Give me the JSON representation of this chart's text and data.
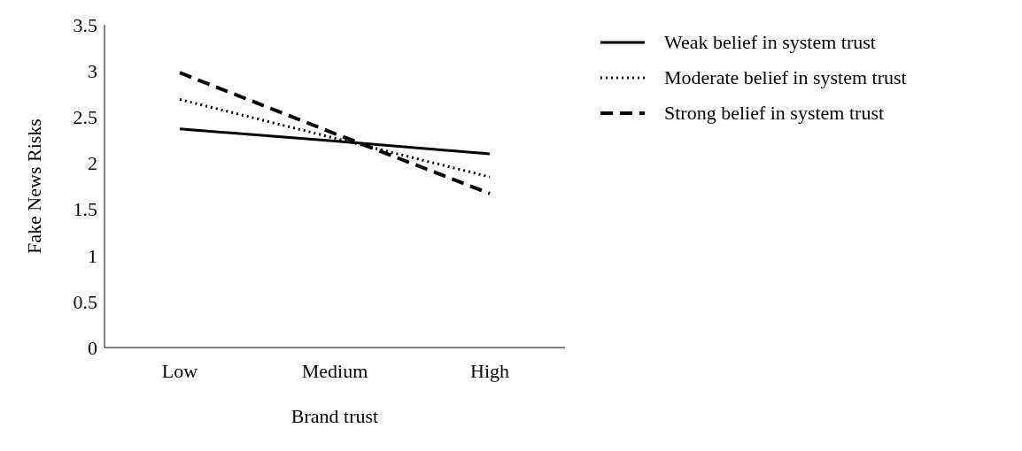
{
  "chart_data": {
    "type": "line",
    "xlabel": "Brand trust",
    "ylabel": "Fake News Risks",
    "categories": [
      "Low",
      "Medium",
      "High"
    ],
    "series": [
      {
        "name": "Weak belief in system trust",
        "color": "#000000",
        "line_style": "solid",
        "values": [
          2.37,
          2.24,
          2.1
        ]
      },
      {
        "name": "Moderate belief in system trust",
        "color": "#000000",
        "line_style": "dotted",
        "values": [
          2.69,
          2.27,
          1.85
        ]
      },
      {
        "name": "Strong belief in system trust",
        "color": "#000000",
        "line_style": "dashed",
        "values": [
          2.98,
          2.32,
          1.67
        ]
      }
    ],
    "ylim": [
      0,
      3.5
    ],
    "yticks": [
      0,
      0.5,
      1,
      1.5,
      2,
      2.5,
      3,
      3.5
    ],
    "grid": false,
    "legend": "right",
    "marker": "none"
  }
}
